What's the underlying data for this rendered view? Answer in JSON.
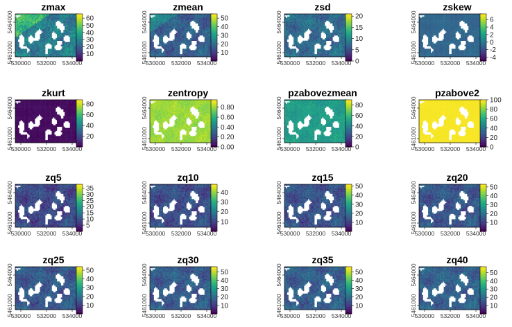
{
  "figure": {
    "colormap": [
      "#440154",
      "#482475",
      "#414487",
      "#355f8d",
      "#2a788e",
      "#21918c",
      "#22a884",
      "#44bf70",
      "#7ad151",
      "#bddf26",
      "#fde725"
    ],
    "x_ticks": [
      "530000",
      "532000",
      "534000"
    ],
    "y_ticks": [
      "5461000",
      "5464000"
    ]
  },
  "chart_data": [
    {
      "type": "heatmap",
      "title": "zmax",
      "legend_ticks": [
        "10",
        "20",
        "30",
        "40",
        "50",
        "60"
      ],
      "legend_values": [
        10,
        20,
        30,
        40,
        50,
        60
      ],
      "range": [
        0,
        66
      ],
      "typical_level": 0.42,
      "spread": 0.22
    },
    {
      "type": "heatmap",
      "title": "zmean",
      "legend_ticks": [
        "10",
        "20",
        "30",
        "40",
        "50"
      ],
      "legend_values": [
        10,
        20,
        30,
        40,
        50
      ],
      "range": [
        0,
        55
      ],
      "typical_level": 0.3,
      "spread": 0.18
    },
    {
      "type": "heatmap",
      "title": "zsd",
      "legend_ticks": [
        "0",
        "5",
        "10",
        "15",
        "20"
      ],
      "legend_values": [
        0,
        5,
        10,
        15,
        20
      ],
      "range": [
        0,
        21
      ],
      "typical_level": 0.35,
      "spread": 0.18
    },
    {
      "type": "heatmap",
      "title": "zskew",
      "legend_ticks": [
        "-4",
        "-2",
        "0",
        "2",
        "4",
        "6"
      ],
      "legend_values": [
        -4,
        -2,
        0,
        2,
        4,
        6
      ],
      "range": [
        -5,
        7.5
      ],
      "typical_level": 0.33,
      "spread": 0.06
    },
    {
      "type": "heatmap",
      "title": "zkurt",
      "legend_ticks": [
        "20",
        "40",
        "60",
        "80"
      ],
      "legend_values": [
        20,
        40,
        60,
        80
      ],
      "range": [
        0,
        88
      ],
      "typical_level": 0.03,
      "spread": 0.03
    },
    {
      "type": "heatmap",
      "title": "zentropy",
      "legend_ticks": [
        "0.00",
        "0.20",
        "0.40",
        "0.60",
        "0.80"
      ],
      "legend_values": [
        0,
        0.2,
        0.4,
        0.6,
        0.8
      ],
      "range": [
        0,
        0.95
      ],
      "typical_level": 0.85,
      "spread": 0.08
    },
    {
      "type": "heatmap",
      "title": "pzabovezmean",
      "legend_ticks": [
        "0",
        "20",
        "40",
        "60",
        "80"
      ],
      "legend_values": [
        0,
        20,
        40,
        60,
        80
      ],
      "range": [
        0,
        90
      ],
      "typical_level": 0.55,
      "spread": 0.1
    },
    {
      "type": "heatmap",
      "title": "pzabove2",
      "legend_ticks": [
        "0",
        "20",
        "40",
        "60",
        "80",
        "100"
      ],
      "legend_values": [
        0,
        20,
        40,
        60,
        80,
        100
      ],
      "range": [
        0,
        100
      ],
      "typical_level": 0.99,
      "spread": 0.01
    },
    {
      "type": "heatmap",
      "title": "zq5",
      "legend_ticks": [
        "5",
        "10",
        "15",
        "20",
        "25",
        "30",
        "35"
      ],
      "legend_values": [
        5,
        10,
        15,
        20,
        25,
        30,
        35
      ],
      "range": [
        0,
        38
      ],
      "typical_level": 0.22,
      "spread": 0.18
    },
    {
      "type": "heatmap",
      "title": "zq10",
      "legend_ticks": [
        "10",
        "20",
        "30",
        "40"
      ],
      "legend_values": [
        10,
        20,
        30,
        40
      ],
      "range": [
        0,
        48
      ],
      "typical_level": 0.24,
      "spread": 0.18
    },
    {
      "type": "heatmap",
      "title": "zq15",
      "legend_ticks": [
        "10",
        "20",
        "30",
        "40",
        "50"
      ],
      "legend_values": [
        10,
        20,
        30,
        40,
        50
      ],
      "range": [
        0,
        52
      ],
      "typical_level": 0.26,
      "spread": 0.18
    },
    {
      "type": "heatmap",
      "title": "zq20",
      "legend_ticks": [
        "10",
        "20",
        "30",
        "40",
        "50"
      ],
      "legend_values": [
        10,
        20,
        30,
        40,
        50
      ],
      "range": [
        0,
        53
      ],
      "typical_level": 0.27,
      "spread": 0.18
    },
    {
      "type": "heatmap",
      "title": "zq25",
      "legend_ticks": [
        "10",
        "20",
        "30",
        "40",
        "50"
      ],
      "legend_values": [
        10,
        20,
        30,
        40,
        50
      ],
      "range": [
        0,
        54
      ],
      "typical_level": 0.28,
      "spread": 0.18
    },
    {
      "type": "heatmap",
      "title": "zq30",
      "legend_ticks": [
        "10",
        "20",
        "30",
        "40",
        "50"
      ],
      "legend_values": [
        10,
        20,
        30,
        40,
        50
      ],
      "range": [
        0,
        56
      ],
      "typical_level": 0.29,
      "spread": 0.18
    },
    {
      "type": "heatmap",
      "title": "zq35",
      "legend_ticks": [
        "10",
        "20",
        "30",
        "40",
        "50"
      ],
      "legend_values": [
        10,
        20,
        30,
        40,
        50
      ],
      "range": [
        0,
        56
      ],
      "typical_level": 0.3,
      "spread": 0.18
    },
    {
      "type": "heatmap",
      "title": "zq40",
      "legend_ticks": [
        "10",
        "20",
        "30",
        "40",
        "50"
      ],
      "legend_values": [
        10,
        20,
        30,
        40,
        50
      ],
      "range": [
        0,
        57
      ],
      "typical_level": 0.31,
      "spread": 0.18
    }
  ]
}
